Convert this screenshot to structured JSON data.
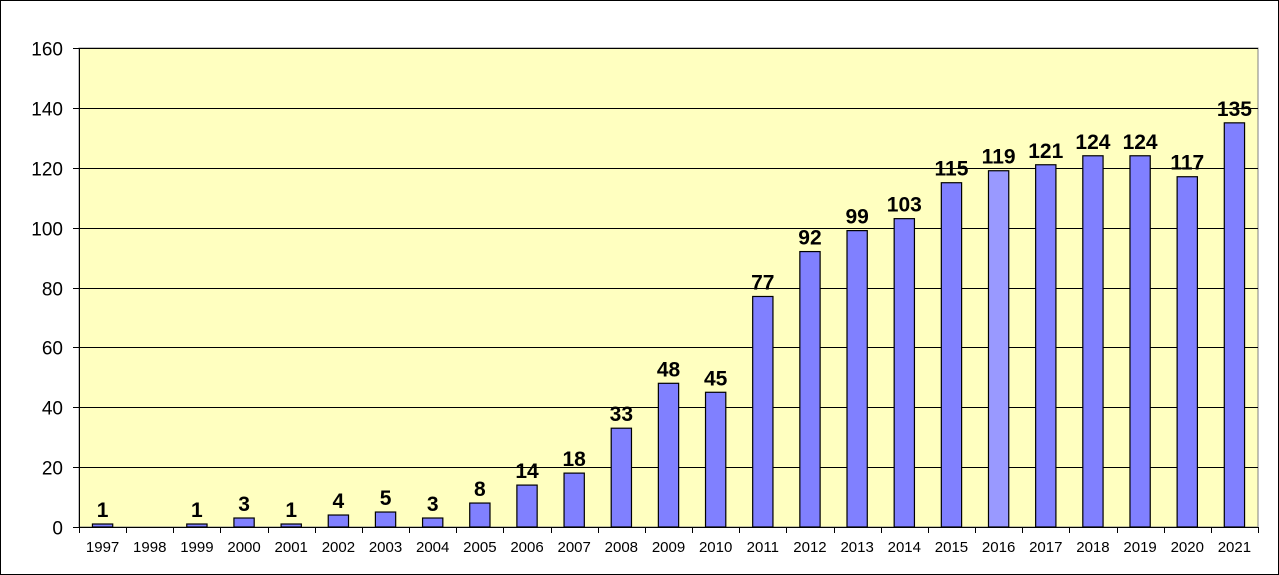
{
  "chart_data": {
    "type": "bar",
    "categories": [
      "1997",
      "1998",
      "1999",
      "2000",
      "2001",
      "2002",
      "2003",
      "2004",
      "2005",
      "2006",
      "2007",
      "2008",
      "2009",
      "2010",
      "2011",
      "2012",
      "2013",
      "2014",
      "2015",
      "2016",
      "2017",
      "2018",
      "2019",
      "2020",
      "2021"
    ],
    "values": [
      1,
      0,
      1,
      3,
      1,
      4,
      5,
      3,
      8,
      14,
      18,
      33,
      48,
      45,
      77,
      92,
      99,
      103,
      115,
      119,
      121,
      124,
      124,
      117,
      135
    ],
    "data_labels": [
      "1",
      "",
      "1",
      "3",
      "1",
      "4",
      "5",
      "3",
      "8",
      "14",
      "18",
      "33",
      "48",
      "45",
      "77",
      "92",
      "99",
      "103",
      "115",
      "119",
      "121",
      "124",
      "124",
      "117",
      "135"
    ],
    "y_ticks": [
      0,
      20,
      40,
      60,
      80,
      100,
      120,
      140,
      160
    ],
    "ylim": [
      0,
      160
    ],
    "grid": true,
    "legend": "none",
    "colors": {
      "plot_background": "#FFFFC0",
      "bar_fill": "#8080FF",
      "bar_fill_highlight": "#9999FF",
      "bar_stroke": "#000000",
      "gridline": "#000000"
    },
    "highlight_category": "2016"
  }
}
